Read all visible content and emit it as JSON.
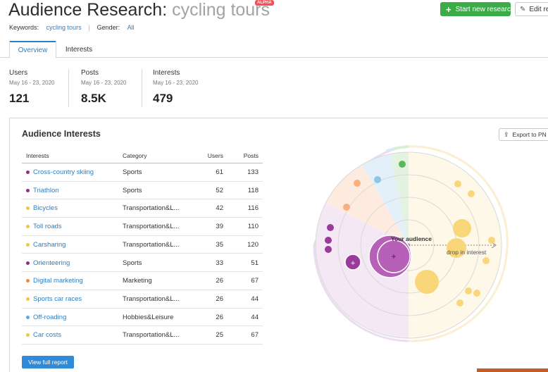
{
  "header": {
    "title": "Audience Research:",
    "subtitle": "cycling tours",
    "badge": "ALPHA",
    "new_project_button": "Start new research",
    "edit_button": "Edit re"
  },
  "filters": {
    "keywords_label": "Keywords:",
    "keywords_value": "cycling tours",
    "gender_label": "Gender:",
    "gender_value": "All"
  },
  "tabs": [
    {
      "label": "Overview",
      "active": true
    },
    {
      "label": "Interests",
      "active": false
    }
  ],
  "stats": [
    {
      "label": "Users",
      "date": "May 16 - 23, 2020",
      "value": "121"
    },
    {
      "label": "Posts",
      "date": "May 16 - 23, 2020",
      "value": "8.5K"
    },
    {
      "label": "Interests",
      "date": "May 16 - 23, 2020",
      "value": "479"
    }
  ],
  "panel": {
    "title": "Audience Interests",
    "export_button": "Export to PN",
    "view_full_button": "View full report"
  },
  "table": {
    "columns": [
      "Interests",
      "Category",
      "Users",
      "Posts"
    ],
    "rows": [
      {
        "name": "Cross-country skiing",
        "category": "Sports",
        "users": "61",
        "posts": "133",
        "color": "#8e2d8f"
      },
      {
        "name": "Triathlon",
        "category": "Sports",
        "users": "52",
        "posts": "118",
        "color": "#8e2d8f"
      },
      {
        "name": "Bicycles",
        "category": "Transportation&L...",
        "users": "42",
        "posts": "116",
        "color": "#f5c441"
      },
      {
        "name": "Toll roads",
        "category": "Transportation&L...",
        "users": "39",
        "posts": "110",
        "color": "#f5c441"
      },
      {
        "name": "Carsharing",
        "category": "Transportation&L...",
        "users": "35",
        "posts": "120",
        "color": "#f5c441"
      },
      {
        "name": "Orienteering",
        "category": "Sports",
        "users": "33",
        "posts": "51",
        "color": "#8e2d8f"
      },
      {
        "name": "Digital marketing",
        "category": "Marketing",
        "users": "26",
        "posts": "67",
        "color": "#f0883c"
      },
      {
        "name": "Sports car races",
        "category": "Transportation&L...",
        "users": "26",
        "posts": "44",
        "color": "#f5c441"
      },
      {
        "name": "Off-roading",
        "category": "Hobbies&Leisure",
        "users": "26",
        "posts": "44",
        "color": "#5aabdf"
      },
      {
        "name": "Car costs",
        "category": "Transportation&L...",
        "users": "25",
        "posts": "67",
        "color": "#f5c441"
      }
    ]
  },
  "bubble_chart": {
    "center_label": "Your audience",
    "arrow_label": "drop in interest"
  },
  "colors": {
    "accent": "#2f7ec0",
    "green": "#3bab48",
    "sports": "#8e2d8f",
    "transportation": "#f5c441",
    "marketing": "#f0883c",
    "hobbies": "#5aabdf"
  }
}
